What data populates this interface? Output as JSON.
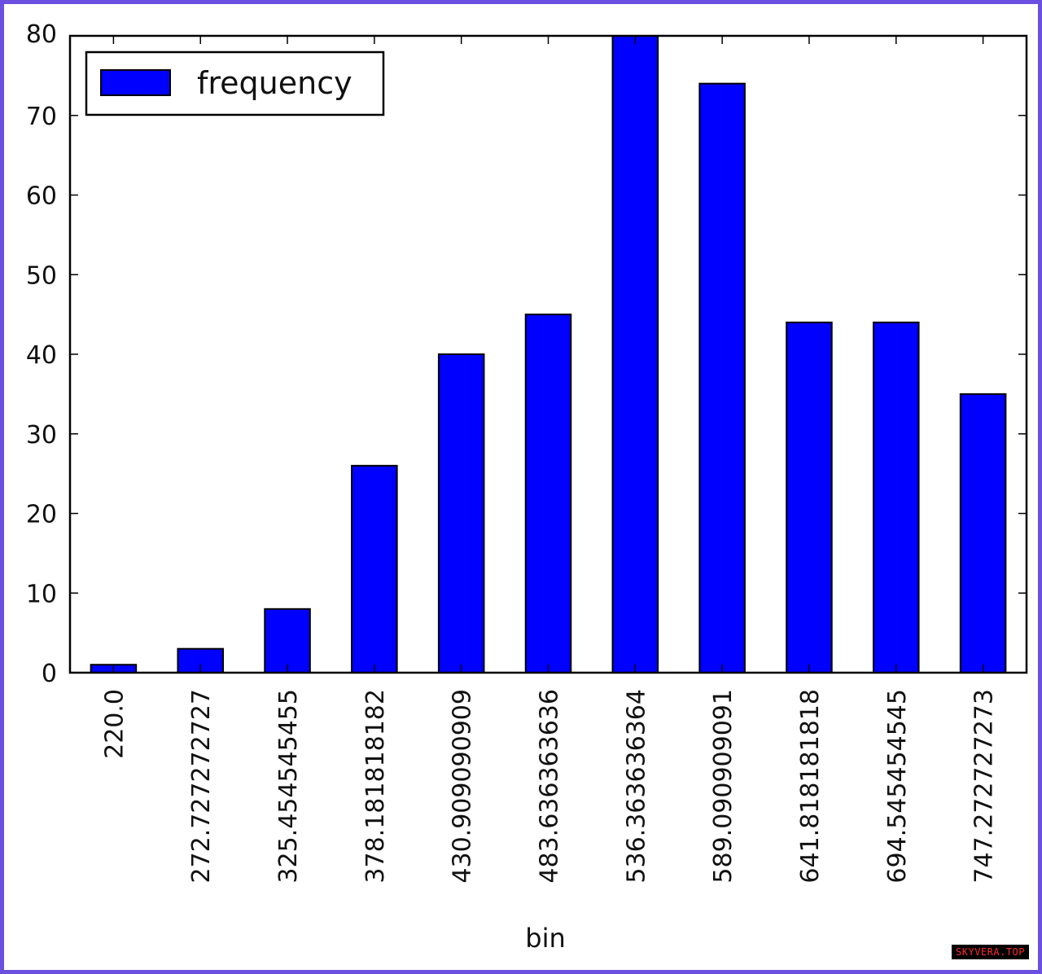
{
  "chart_data": {
    "type": "bar",
    "categories": [
      "220.0",
      "272.727272727",
      "325.454545455",
      "378.181818182",
      "430.909090909",
      "483.636363636",
      "536.363636364",
      "589.090909091",
      "641.818181818",
      "694.545454545",
      "747.272727273"
    ],
    "series": [
      {
        "name": "frequency",
        "color": "#0000ff",
        "values": [
          1,
          3,
          8,
          26,
          40,
          45,
          80,
          74,
          44,
          44,
          35
        ]
      }
    ],
    "xlabel": "bin",
    "ylabel": "",
    "ylim": [
      0,
      80
    ],
    "yticks": [
      0,
      10,
      20,
      30,
      40,
      50,
      60,
      70,
      80
    ],
    "grid": false,
    "legend_position": "top-left"
  },
  "watermark": "SKYVERA.TOP",
  "colors": {
    "frame": "#6a4fe0",
    "bar": "#0000ff"
  }
}
